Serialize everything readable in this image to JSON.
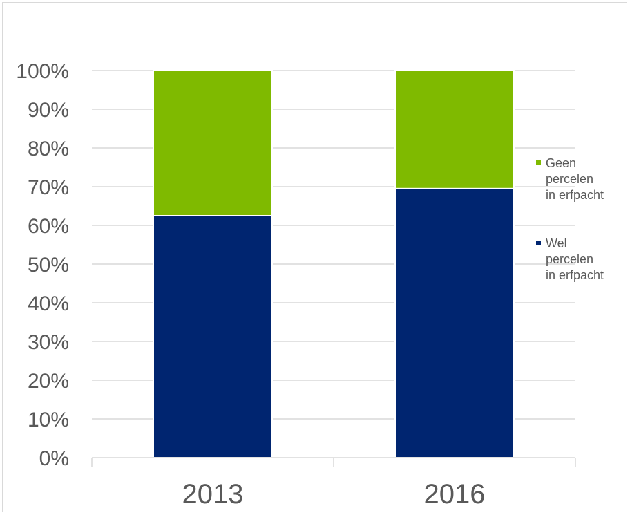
{
  "chart_data": {
    "type": "bar",
    "stacked": true,
    "categories": [
      "2013",
      "2016"
    ],
    "series": [
      {
        "name": "Wel percelen in erfpacht",
        "values": [
          62.5,
          69.5
        ],
        "color": "#002570"
      },
      {
        "name": "Geen percelen in erfpacht",
        "values": [
          37.5,
          30.5
        ],
        "color": "#7fba00"
      }
    ],
    "ylim": [
      0,
      100
    ],
    "yticks": [
      "0%",
      "10%",
      "20%",
      "30%",
      "40%",
      "50%",
      "60%",
      "70%",
      "80%",
      "90%",
      "100%"
    ],
    "grid": true,
    "legend_position": "right",
    "legend": [
      {
        "lines": [
          "Geen",
          "percelen",
          "in erfpacht"
        ],
        "color": "#7fba00"
      },
      {
        "lines": [
          "Wel",
          "percelen",
          "in erfpacht"
        ],
        "color": "#002570"
      }
    ],
    "colors": {
      "grid": "#d9d9d9",
      "text": "#595959"
    }
  }
}
